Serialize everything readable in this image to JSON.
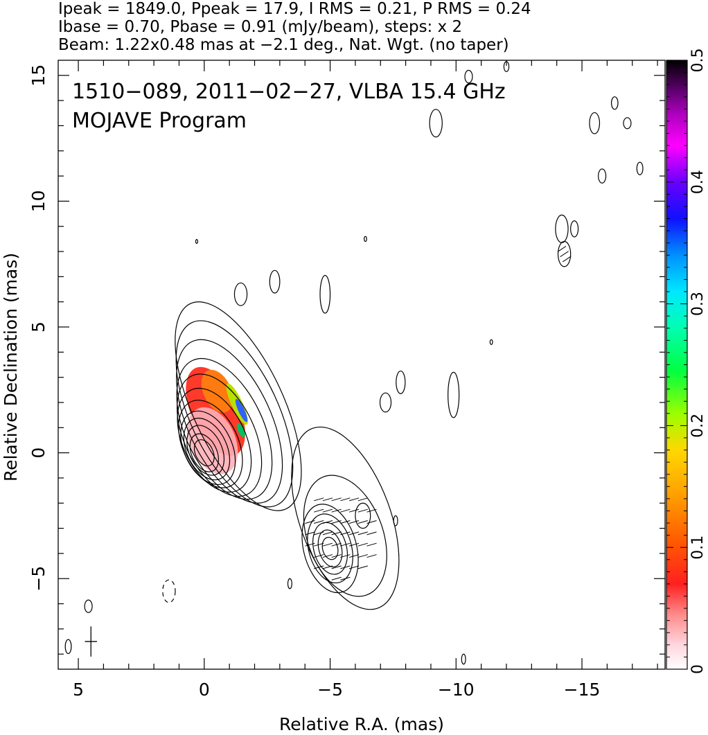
{
  "header": {
    "line1": "Ipeak = 1849.0, Ppeak = 17.9, I RMS = 0.21, P RMS = 0.24",
    "line2": "Ibase = 0.70, Pbase = 0.91 (mJy/beam), steps: x 2",
    "line3": "Beam: 1.22x0.48 mas at −2.1 deg., Nat. Wgt. (no taper)"
  },
  "chart_data": {
    "type": "contour",
    "title_line1": "1510−089, 2011−02−27, VLBA 15.4 GHz",
    "title_line2": "MOJAVE Program",
    "xlabel": "Relative R.A. (mas)",
    "ylabel": "Relative Declination (mas)",
    "xlim": [
      5.8,
      -18.3
    ],
    "ylim": [
      -8.6,
      15.6
    ],
    "x_ticks": [
      5,
      0,
      -5,
      -10,
      -15
    ],
    "x_tick_labels": [
      "5",
      "0",
      "−5",
      "−10",
      "−15"
    ],
    "y_ticks": [
      -5,
      0,
      5,
      10,
      15
    ],
    "y_tick_labels": [
      "−5",
      "0",
      "5",
      "10",
      "15"
    ],
    "colorbar": {
      "range": [
        0,
        0.5
      ],
      "ticks": [
        0,
        0.1,
        0.2,
        0.3,
        0.4,
        0.5
      ],
      "tick_labels": [
        "0",
        "0.1",
        "0.2",
        "0.3",
        "0.4",
        "0.5"
      ]
    },
    "core": {
      "center": [
        0,
        0
      ],
      "levels": [
        {
          "a": 0.35,
          "b": 0.55,
          "dx": 0.0,
          "dy": 0.0
        },
        {
          "a": 0.5,
          "b": 0.8,
          "dx": 0.0,
          "dy": 0.0
        },
        {
          "a": 0.65,
          "b": 1.05,
          "dx": -0.05,
          "dy": 0.1
        },
        {
          "a": 0.8,
          "b": 1.3,
          "dx": -0.1,
          "dy": 0.15
        },
        {
          "a": 0.95,
          "b": 1.55,
          "dx": -0.15,
          "dy": 0.2
        },
        {
          "a": 1.1,
          "b": 1.85,
          "dx": -0.25,
          "dy": 0.35
        },
        {
          "a": 1.25,
          "b": 2.2,
          "dx": -0.4,
          "dy": 0.5
        },
        {
          "a": 1.4,
          "b": 2.6,
          "dx": -0.6,
          "dy": 0.7
        },
        {
          "a": 1.55,
          "b": 3.0,
          "dx": -0.8,
          "dy": 0.95
        },
        {
          "a": 1.65,
          "b": 3.5,
          "dx": -1.0,
          "dy": 1.25
        },
        {
          "a": 1.75,
          "b": 4.0,
          "dx": -1.2,
          "dy": 1.55
        },
        {
          "a": 1.8,
          "b": 4.5,
          "dx": -1.35,
          "dy": 1.85
        }
      ],
      "tilt_deg": -25
    },
    "jet_knot": {
      "center": [
        -5,
        -3.8
      ],
      "levels": [
        {
          "a": 0.3,
          "b": 0.45
        },
        {
          "a": 0.45,
          "b": 0.75
        },
        {
          "a": 0.65,
          "b": 1.05
        },
        {
          "a": 0.85,
          "b": 1.4
        },
        {
          "a": 1.05,
          "b": 1.8
        }
      ],
      "secondary": {
        "center": [
          -6.3,
          -2.5
        ],
        "a": 0.3,
        "b": 0.5
      },
      "envelope": {
        "center": [
          -5.6,
          -2.6
        ],
        "a": 1.8,
        "b": 3.8,
        "tilt_deg": -20
      },
      "inner_envelope": {
        "center": [
          -5.6,
          -3.3
        ],
        "a": 1.5,
        "b": 2.5,
        "tilt_deg": -20
      }
    },
    "islands": [
      [
        1.4,
        -5.5,
        0.25,
        0.45,
        true
      ],
      [
        -1.45,
        6.3,
        0.25,
        0.45,
        false
      ],
      [
        -2.8,
        6.8,
        0.2,
        0.45,
        false
      ],
      [
        -4.8,
        6.3,
        0.2,
        0.75,
        false
      ],
      [
        -7.8,
        2.8,
        0.18,
        0.45,
        false
      ],
      [
        -7.2,
        2.0,
        0.22,
        0.38,
        false
      ],
      [
        -9.9,
        2.3,
        0.22,
        0.9,
        false
      ],
      [
        -9.2,
        13.1,
        0.25,
        0.55,
        false
      ],
      [
        -10.5,
        14.95,
        0.15,
        0.25,
        false
      ],
      [
        -12.0,
        15.35,
        0.1,
        0.2,
        false
      ],
      [
        -14.2,
        8.9,
        0.25,
        0.55,
        false
      ],
      [
        -14.3,
        7.9,
        0.25,
        0.5,
        false
      ],
      [
        -14.7,
        8.9,
        0.15,
        0.32,
        false
      ],
      [
        -15.5,
        13.1,
        0.2,
        0.42,
        false
      ],
      [
        -15.8,
        11.0,
        0.15,
        0.28,
        false
      ],
      [
        -16.3,
        13.9,
        0.13,
        0.25,
        false
      ],
      [
        -16.8,
        13.1,
        0.15,
        0.22,
        false
      ],
      [
        -17.3,
        11.3,
        0.12,
        0.25,
        false
      ],
      [
        5.4,
        -7.7,
        0.12,
        0.28,
        false
      ],
      [
        4.6,
        -6.1,
        0.15,
        0.25,
        false
      ],
      [
        -3.4,
        -5.2,
        0.08,
        0.2,
        false
      ],
      [
        -7.6,
        -2.7,
        0.08,
        0.2,
        false
      ],
      [
        -10.3,
        -8.2,
        0.08,
        0.2,
        false
      ],
      [
        -11.4,
        4.4,
        0.05,
        0.1,
        false
      ],
      [
        -6.4,
        8.5,
        0.05,
        0.1,
        false
      ],
      [
        0.3,
        8.4,
        0.04,
        0.08,
        false
      ]
    ]
  }
}
